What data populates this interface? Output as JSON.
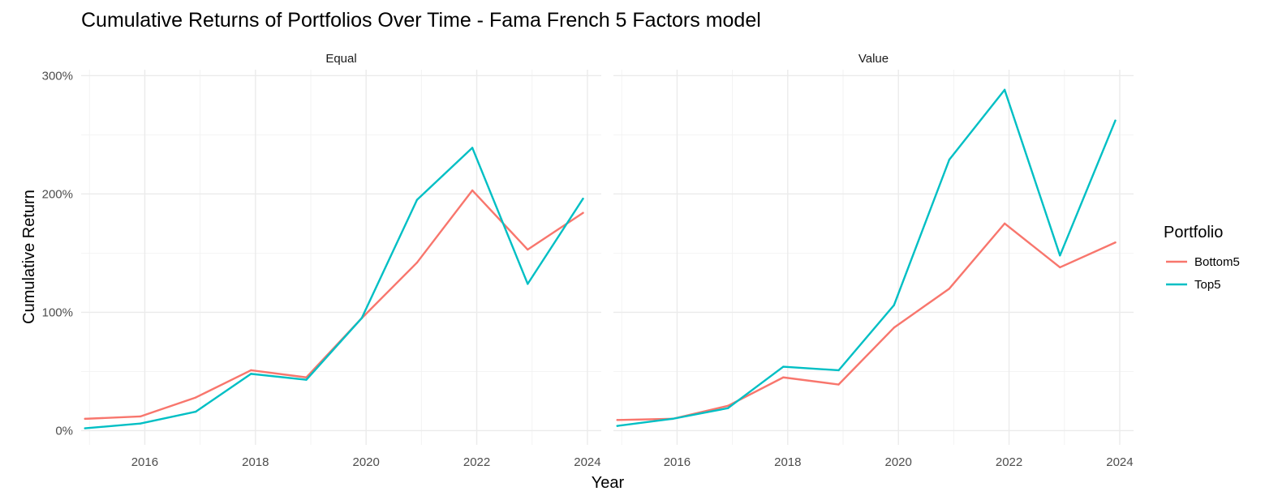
{
  "chart_data": {
    "type": "line",
    "title": "Cumulative Returns of Portfolios Over Time - Fama French 5 Factors model",
    "xlabel": "Year",
    "ylabel": "Cumulative Return",
    "xlim": [
      2014.85,
      2024.25
    ],
    "ylim": [
      -0.12,
      3.05
    ],
    "x_ticks": [
      2016,
      2018,
      2020,
      2022,
      2024
    ],
    "y_ticks": [
      0,
      1,
      2,
      3
    ],
    "y_tick_labels": [
      "0%",
      "100%",
      "200%",
      "300%"
    ],
    "grid": true,
    "legend_position": "right",
    "legend_title": "Portfolio",
    "x": [
      2014.92,
      2015.92,
      2016.92,
      2017.92,
      2018.92,
      2019.92,
      2020.92,
      2021.92,
      2022.92,
      2023.92
    ],
    "panels": [
      {
        "name": "Equal",
        "series": [
          {
            "name": "Bottom5",
            "color": "#F8766D",
            "values": [
              0.1,
              0.12,
              0.28,
              0.51,
              0.45,
              0.95,
              1.42,
              2.03,
              1.53,
              1.84
            ]
          },
          {
            "name": "Top5",
            "color": "#00BFC4",
            "values": [
              0.02,
              0.06,
              0.16,
              0.48,
              0.43,
              0.95,
              1.95,
              2.39,
              1.24,
              1.96
            ]
          }
        ]
      },
      {
        "name": "Value",
        "series": [
          {
            "name": "Bottom5",
            "color": "#F8766D",
            "values": [
              0.09,
              0.1,
              0.21,
              0.45,
              0.39,
              0.87,
              1.2,
              1.75,
              1.38,
              1.59
            ]
          },
          {
            "name": "Top5",
            "color": "#00BFC4",
            "values": [
              0.04,
              0.1,
              0.19,
              0.54,
              0.51,
              1.06,
              2.29,
              2.88,
              1.48,
              2.62
            ]
          }
        ]
      }
    ]
  }
}
